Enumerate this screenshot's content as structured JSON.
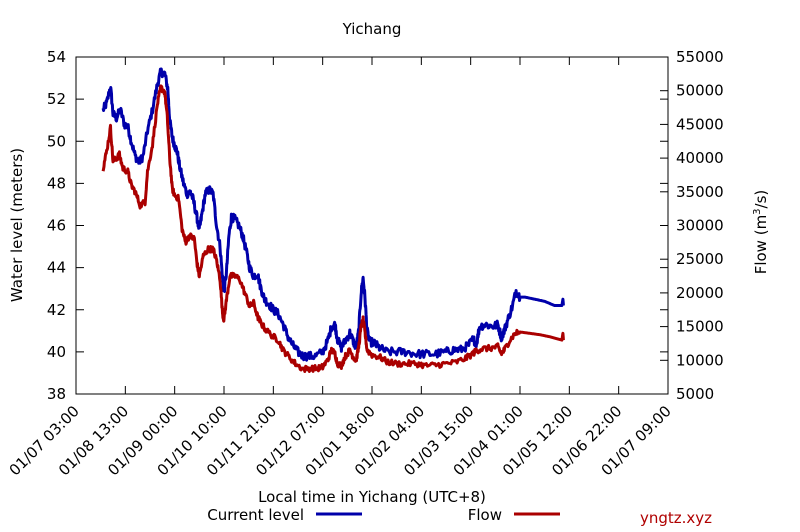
{
  "chart_data": {
    "type": "line",
    "title": "Yichang",
    "xlabel": "Local time in Yichang (UTC+8)",
    "ylabel": "Water level (meters)",
    "y2label_main": "Flow (m",
    "y2label_sup": "3",
    "y2label_tail": "/s)",
    "x_ticks": [
      "01/07 03:00",
      "01/08 13:00",
      "01/09 00:00",
      "01/10 10:00",
      "01/11 21:00",
      "01/12 07:00",
      "01/01 18:00",
      "01/02 04:00",
      "01/03 15:00",
      "01/04 01:00",
      "01/05 12:00",
      "01/06 22:00",
      "01/07 09:00"
    ],
    "xlim": [
      0,
      12
    ],
    "ylim": [
      38,
      54
    ],
    "y_ticks": [
      "38",
      "40",
      "42",
      "44",
      "46",
      "48",
      "50",
      "52",
      "54"
    ],
    "y2lim": [
      5000,
      55000
    ],
    "y2_ticks": [
      "5000",
      "10000",
      "15000",
      "20000",
      "25000",
      "30000",
      "35000",
      "40000",
      "45000",
      "50000",
      "55000"
    ],
    "grid": false,
    "legend_placement": "bottom",
    "series": [
      {
        "name": "Current level",
        "axis": "left",
        "color": "#0000aa",
        "noise": 0.4,
        "points": [
          [
            0.55,
            51.5
          ],
          [
            0.62,
            51.8
          ],
          [
            0.7,
            52.6
          ],
          [
            0.75,
            51.3
          ],
          [
            0.82,
            51.1
          ],
          [
            0.9,
            51.5
          ],
          [
            0.98,
            50.8
          ],
          [
            1.05,
            50.7
          ],
          [
            1.12,
            50.0
          ],
          [
            1.2,
            49.3
          ],
          [
            1.28,
            49.0
          ],
          [
            1.36,
            49.3
          ],
          [
            1.45,
            50.5
          ],
          [
            1.55,
            51.5
          ],
          [
            1.65,
            52.7
          ],
          [
            1.72,
            53.3
          ],
          [
            1.8,
            53.2
          ],
          [
            1.86,
            52.5
          ],
          [
            1.9,
            51.0
          ],
          [
            1.95,
            50.2
          ],
          [
            2.0,
            49.8
          ],
          [
            2.05,
            49.5
          ],
          [
            2.1,
            48.8
          ],
          [
            2.18,
            48.0
          ],
          [
            2.25,
            47.5
          ],
          [
            2.32,
            47.6
          ],
          [
            2.38,
            47.2
          ],
          [
            2.45,
            46.4
          ],
          [
            2.5,
            45.8
          ],
          [
            2.55,
            46.5
          ],
          [
            2.62,
            47.5
          ],
          [
            2.7,
            47.7
          ],
          [
            2.78,
            47.5
          ],
          [
            2.85,
            46.0
          ],
          [
            2.92,
            45.0
          ],
          [
            2.97,
            43.5
          ],
          [
            3.0,
            42.8
          ],
          [
            3.05,
            43.8
          ],
          [
            3.1,
            45.5
          ],
          [
            3.15,
            46.4
          ],
          [
            3.22,
            46.3
          ],
          [
            3.3,
            46.0
          ],
          [
            3.38,
            45.5
          ],
          [
            3.45,
            44.8
          ],
          [
            3.52,
            44.0
          ],
          [
            3.6,
            43.6
          ],
          [
            3.68,
            43.7
          ],
          [
            3.75,
            43.0
          ],
          [
            3.82,
            42.5
          ],
          [
            3.9,
            42.3
          ],
          [
            4.0,
            42.0
          ],
          [
            4.1,
            41.8
          ],
          [
            4.2,
            41.3
          ],
          [
            4.3,
            40.7
          ],
          [
            4.4,
            40.3
          ],
          [
            4.5,
            40.0
          ],
          [
            4.6,
            39.8
          ],
          [
            4.72,
            39.8
          ],
          [
            4.85,
            39.8
          ],
          [
            5.0,
            40.0
          ],
          [
            5.1,
            40.5
          ],
          [
            5.18,
            41.2
          ],
          [
            5.25,
            41.3
          ],
          [
            5.3,
            40.6
          ],
          [
            5.38,
            40.2
          ],
          [
            5.45,
            40.5
          ],
          [
            5.55,
            40.9
          ],
          [
            5.62,
            40.5
          ],
          [
            5.68,
            40.2
          ],
          [
            5.73,
            41.0
          ],
          [
            5.78,
            42.8
          ],
          [
            5.82,
            43.5
          ],
          [
            5.86,
            42.5
          ],
          [
            5.9,
            41.0
          ],
          [
            5.95,
            40.5
          ],
          [
            6.05,
            40.4
          ],
          [
            6.15,
            40.2
          ],
          [
            6.3,
            40.0
          ],
          [
            6.5,
            40.0
          ],
          [
            6.7,
            40.0
          ],
          [
            6.9,
            39.9
          ],
          [
            7.1,
            39.9
          ],
          [
            7.3,
            39.9
          ],
          [
            7.5,
            40.0
          ],
          [
            7.65,
            40.1
          ],
          [
            7.8,
            40.1
          ],
          [
            7.95,
            40.3
          ],
          [
            8.05,
            40.6
          ],
          [
            8.12,
            40.4
          ],
          [
            8.18,
            41.2
          ],
          [
            8.3,
            41.3
          ],
          [
            8.45,
            41.2
          ],
          [
            8.55,
            41.3
          ],
          [
            8.62,
            40.7
          ],
          [
            8.68,
            41.0
          ],
          [
            8.75,
            41.5
          ],
          [
            8.85,
            42.2
          ],
          [
            8.92,
            42.9
          ],
          [
            9.0,
            42.6
          ],
          [
            9.1,
            42.6
          ],
          [
            9.3,
            42.5
          ],
          [
            9.5,
            42.4
          ],
          [
            9.7,
            42.2
          ],
          [
            9.85,
            42.2
          ],
          [
            9.87,
            42.5
          ],
          [
            9.88,
            42.2
          ]
        ]
      },
      {
        "name": "Flow",
        "axis": "right",
        "color": "#aa0000",
        "noise": 900,
        "points": [
          [
            0.55,
            38500
          ],
          [
            0.62,
            41000
          ],
          [
            0.7,
            44500
          ],
          [
            0.75,
            39500
          ],
          [
            0.82,
            40000
          ],
          [
            0.88,
            40500
          ],
          [
            0.95,
            38500
          ],
          [
            1.05,
            38000
          ],
          [
            1.12,
            36000
          ],
          [
            1.2,
            35000
          ],
          [
            1.3,
            33000
          ],
          [
            1.4,
            33500
          ],
          [
            1.45,
            38000
          ],
          [
            1.55,
            42000
          ],
          [
            1.65,
            48000
          ],
          [
            1.72,
            50500
          ],
          [
            1.8,
            49800
          ],
          [
            1.85,
            46000
          ],
          [
            1.9,
            40000
          ],
          [
            1.95,
            35500
          ],
          [
            2.0,
            34500
          ],
          [
            2.08,
            34000
          ],
          [
            2.15,
            29500
          ],
          [
            2.22,
            27500
          ],
          [
            2.3,
            28500
          ],
          [
            2.4,
            28000
          ],
          [
            2.45,
            24500
          ],
          [
            2.5,
            22500
          ],
          [
            2.58,
            25500
          ],
          [
            2.68,
            26500
          ],
          [
            2.78,
            26500
          ],
          [
            2.85,
            24800
          ],
          [
            2.92,
            22000
          ],
          [
            2.97,
            17000
          ],
          [
            3.0,
            16000
          ],
          [
            3.05,
            19000
          ],
          [
            3.12,
            22500
          ],
          [
            3.22,
            22500
          ],
          [
            3.32,
            22000
          ],
          [
            3.42,
            20000
          ],
          [
            3.52,
            18000
          ],
          [
            3.6,
            18500
          ],
          [
            3.68,
            16500
          ],
          [
            3.75,
            15500
          ],
          [
            3.85,
            14500
          ],
          [
            4.0,
            13500
          ],
          [
            4.1,
            13000
          ],
          [
            4.2,
            11500
          ],
          [
            4.32,
            10500
          ],
          [
            4.45,
            9500
          ],
          [
            4.6,
            8700
          ],
          [
            4.75,
            8800
          ],
          [
            4.9,
            8800
          ],
          [
            5.0,
            9000
          ],
          [
            5.1,
            10000
          ],
          [
            5.18,
            11500
          ],
          [
            5.25,
            11000
          ],
          [
            5.3,
            9500
          ],
          [
            5.38,
            9200
          ],
          [
            5.45,
            10500
          ],
          [
            5.55,
            11500
          ],
          [
            5.62,
            10500
          ],
          [
            5.68,
            10000
          ],
          [
            5.73,
            12000
          ],
          [
            5.78,
            15000
          ],
          [
            5.82,
            16000
          ],
          [
            5.86,
            14000
          ],
          [
            5.9,
            11500
          ],
          [
            6.0,
            10800
          ],
          [
            6.15,
            10500
          ],
          [
            6.3,
            9800
          ],
          [
            6.5,
            9500
          ],
          [
            6.7,
            9500
          ],
          [
            6.9,
            9500
          ],
          [
            7.1,
            9200
          ],
          [
            7.3,
            9300
          ],
          [
            7.5,
            9500
          ],
          [
            7.7,
            9700
          ],
          [
            7.9,
            10300
          ],
          [
            8.05,
            11000
          ],
          [
            8.12,
            11500
          ],
          [
            8.25,
            11700
          ],
          [
            8.4,
            11800
          ],
          [
            8.55,
            12000
          ],
          [
            8.62,
            11000
          ],
          [
            8.68,
            11500
          ],
          [
            8.78,
            12800
          ],
          [
            8.9,
            14000
          ],
          [
            9.0,
            14200
          ],
          [
            9.2,
            14000
          ],
          [
            9.4,
            13800
          ],
          [
            9.6,
            13500
          ],
          [
            9.85,
            13000
          ],
          [
            9.87,
            14000
          ],
          [
            9.88,
            13000
          ]
        ]
      }
    ]
  },
  "watermark": "yngtz.xyz"
}
